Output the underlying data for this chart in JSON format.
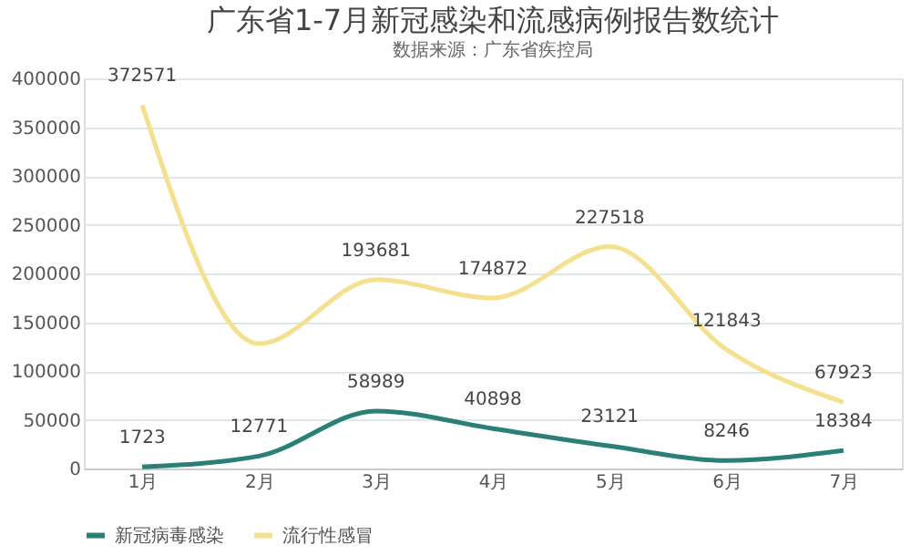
{
  "chart_data": {
    "type": "line",
    "title": "广东省1-7月新冠感染和流感病例报告数统计",
    "subtitle": "数据来源：广东省疾控局",
    "categories": [
      "1月",
      "2月",
      "3月",
      "4月",
      "5月",
      "6月",
      "7月"
    ],
    "series": [
      {
        "name": "新冠病毒感染",
        "color": "#2a7f76",
        "values": [
          1723,
          12771,
          58989,
          40898,
          23121,
          8246,
          18384
        ],
        "value_labels": [
          "1723",
          "12771",
          "58989",
          "40898",
          "23121",
          "8246",
          "18384"
        ]
      },
      {
        "name": "流行性感冒",
        "color": "#f5e08f",
        "values": [
          372571,
          128000,
          193681,
          174872,
          227518,
          121843,
          67923
        ],
        "value_labels": [
          "372571",
          null,
          "193681",
          "174872",
          "227518",
          "121843",
          "67923"
        ]
      }
    ],
    "ylim": [
      0,
      400000
    ],
    "yticks": [
      0,
      50000,
      100000,
      150000,
      200000,
      250000,
      300000,
      350000,
      400000
    ],
    "grid": "y",
    "legend": "bottom",
    "marker": "none",
    "line_style": "solid"
  }
}
